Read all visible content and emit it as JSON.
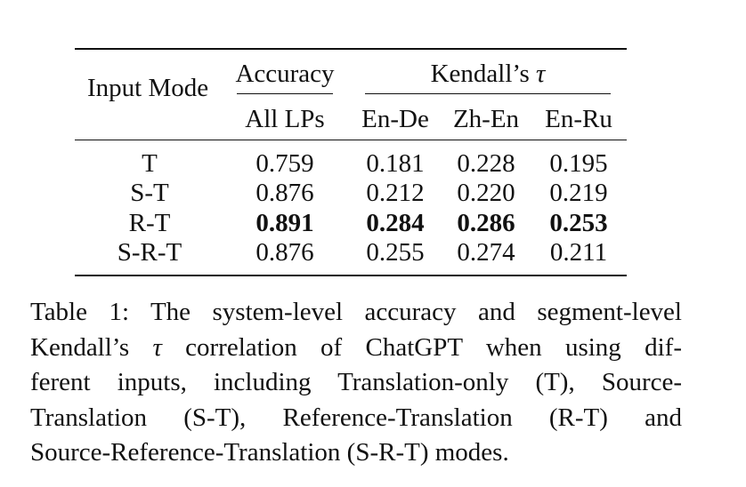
{
  "table": {
    "header": {
      "input_mode": "Input Mode",
      "accuracy": "Accuracy",
      "kendall": "Kendall’s τ",
      "all_lps": "All LPs",
      "en_de": "En-De",
      "zh_en": "Zh-En",
      "en_ru": "En-Ru"
    },
    "rows": [
      {
        "mode": "T",
        "acc": "0.759",
        "en_de": "0.181",
        "zh_en": "0.228",
        "en_ru": "0.195",
        "bold": false
      },
      {
        "mode": "S-T",
        "acc": "0.876",
        "en_de": "0.212",
        "zh_en": "0.220",
        "en_ru": "0.219",
        "bold": false
      },
      {
        "mode": "R-T",
        "acc": "0.891",
        "en_de": "0.284",
        "zh_en": "0.286",
        "en_ru": "0.253",
        "bold": true
      },
      {
        "mode": "S-R-T",
        "acc": "0.876",
        "en_de": "0.255",
        "zh_en": "0.274",
        "en_ru": "0.211",
        "bold": false
      }
    ]
  },
  "caption": {
    "lines": [
      "Table 1: The system-level accuracy and segment-level",
      "Kendall’s τ correlation of ChatGPT when using dif-",
      "ferent inputs, including Translation-only (T), Source-",
      "Translation (S-T), Reference-Translation (R-T) and",
      "Source-Reference-Translation (S-R-T) modes."
    ]
  }
}
